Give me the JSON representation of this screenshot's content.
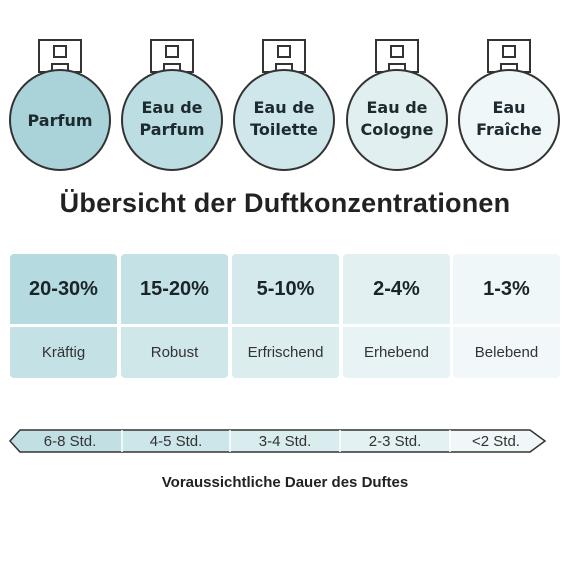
{
  "bottles": [
    {
      "line1": "Parfum",
      "line2": "",
      "fill": "#a9d3d8"
    },
    {
      "line1": "Eau de",
      "line2": "Parfum",
      "fill": "#bcdde1"
    },
    {
      "line1": "Eau de",
      "line2": "Toilette",
      "fill": "#cfe7ea"
    },
    {
      "line1": "Eau de",
      "line2": "Cologne",
      "fill": "#e1eff1"
    },
    {
      "line1": "Eau",
      "line2": "Fraîche",
      "fill": "#f0f7f8"
    }
  ],
  "title": "Übersicht der Duftkonzentrationen",
  "concentrations": [
    {
      "percent": "20-30%",
      "label": "Kräftig",
      "top_color": "#b5dadf",
      "bottom_color": "#c4e1e5"
    },
    {
      "percent": "15-20%",
      "label": "Robust",
      "top_color": "#c4e1e5",
      "bottom_color": "#d0e7ea"
    },
    {
      "percent": "5-10%",
      "label": "Erfrischend",
      "top_color": "#d3e9ec",
      "bottom_color": "#dcedf0"
    },
    {
      "percent": "2-4%",
      "label": "Erhebend",
      "top_color": "#e2f0f2",
      "bottom_color": "#e8f3f5"
    },
    {
      "percent": "1-3%",
      "label": "Belebend",
      "top_color": "#eff7f8",
      "bottom_color": "#f2f8f9"
    }
  ],
  "durations": [
    {
      "label": "6-8 Std.",
      "color": "#c2e0e4"
    },
    {
      "label": "4-5 Std.",
      "color": "#cde6e9"
    },
    {
      "label": "3-4 Std.",
      "color": "#d9ecee"
    },
    {
      "label": "2-3 Std.",
      "color": "#e4f1f3"
    },
    {
      "label": "<2 Std.",
      "color": "#f0f7f8"
    }
  ],
  "caption": "Voraussichtliche Dauer des Duftes"
}
